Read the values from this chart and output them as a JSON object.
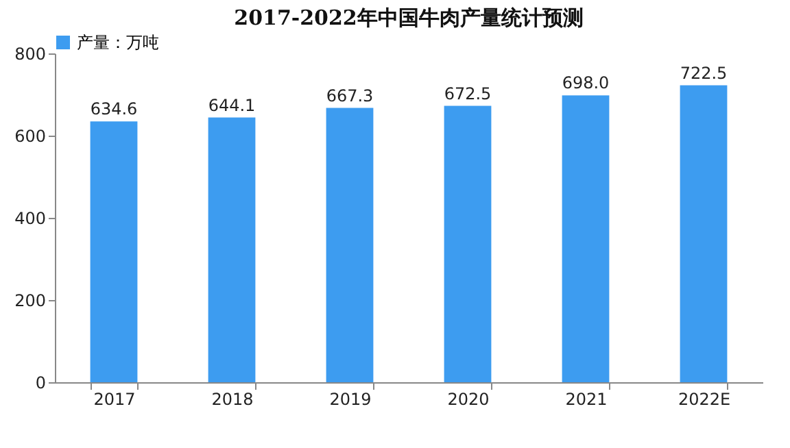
{
  "chart_data": {
    "type": "bar",
    "title": "2017-2022年中国牛肉产量统计预测",
    "categories": [
      "2017",
      "2018",
      "2019",
      "2020",
      "2021",
      "2022E"
    ],
    "series": [
      {
        "name": "产量：万吨",
        "color": "#3d9cf0",
        "values": [
          634.6,
          644.1,
          667.3,
          672.5,
          698.0,
          722.5
        ],
        "value_labels": [
          "634.6",
          "644.1",
          "667.3",
          "672.5",
          "698.0",
          "722.5"
        ]
      }
    ],
    "ylim": [
      0,
      800
    ],
    "yticks": [
      0,
      200,
      400,
      600,
      800
    ],
    "legend": "top"
  }
}
